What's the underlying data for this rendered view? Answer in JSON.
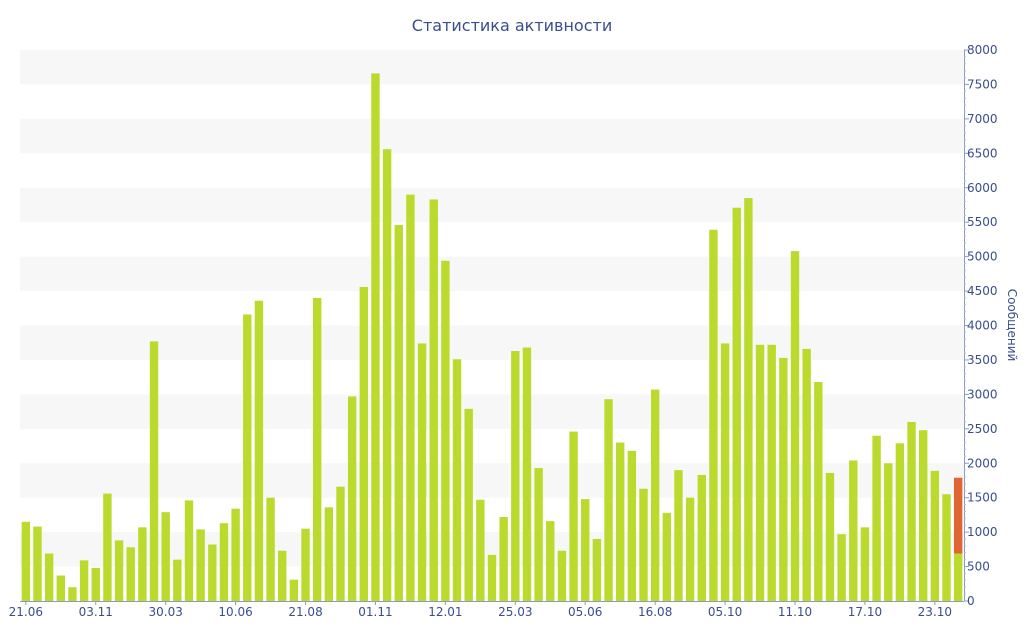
{
  "chart_data": {
    "type": "bar",
    "title": "Статистика активности",
    "ylabel": "Сообщений",
    "xlabel": "",
    "ylim": [
      0,
      8000
    ],
    "yticks": [
      0,
      500,
      1000,
      1500,
      2000,
      2500,
      3000,
      3500,
      4000,
      4500,
      5000,
      5500,
      6000,
      6500,
      7000,
      7500,
      8000
    ],
    "y_axis_position": "right",
    "grid": "alternating horizontal bands",
    "x_tick_labels": [
      {
        "index": 0,
        "label": "21.06"
      },
      {
        "index": 6,
        "label": "03.11"
      },
      {
        "index": 12,
        "label": "30.03"
      },
      {
        "index": 18,
        "label": "10.06"
      },
      {
        "index": 24,
        "label": "21.08"
      },
      {
        "index": 30,
        "label": "01.11"
      },
      {
        "index": 36,
        "label": "12.01"
      },
      {
        "index": 42,
        "label": "25.03"
      },
      {
        "index": 48,
        "label": "05.06"
      },
      {
        "index": 54,
        "label": "16.08"
      },
      {
        "index": 60,
        "label": "05.10"
      },
      {
        "index": 66,
        "label": "11.10"
      },
      {
        "index": 72,
        "label": "17.10"
      },
      {
        "index": 78,
        "label": "23.10"
      }
    ],
    "colors": {
      "bar": "#bada2e",
      "highlight": "#e06533",
      "text": "#3a4e8c",
      "band": "#f7f7f7"
    },
    "values": [
      1150,
      1080,
      690,
      370,
      200,
      590,
      480,
      1560,
      880,
      780,
      1070,
      3770,
      1290,
      600,
      1460,
      1040,
      820,
      1130,
      1340,
      4160,
      4360,
      1500,
      730,
      310,
      1050,
      4400,
      1360,
      1660,
      2970,
      4560,
      7660,
      6560,
      5460,
      5900,
      3740,
      5830,
      4940,
      3510,
      2790,
      1470,
      670,
      1220,
      3630,
      3680,
      1930,
      1160,
      730,
      2460,
      1480,
      900,
      2930,
      2300,
      2180,
      1630,
      3070,
      1280,
      1900,
      1500,
      1830,
      5390,
      3740,
      5710,
      5850,
      3720,
      3720,
      3530,
      5080,
      3660,
      3180,
      1860,
      970,
      2040,
      1070,
      2400,
      2000,
      2290,
      2600,
      2480,
      1890,
      1550,
      690
    ],
    "last_bar_extra": 1100
  }
}
